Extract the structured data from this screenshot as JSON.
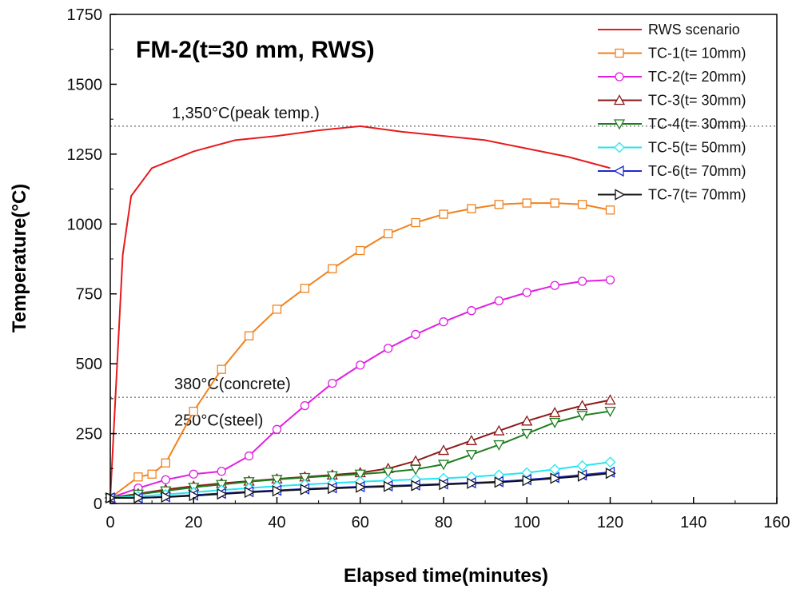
{
  "chart_data": {
    "type": "line",
    "title": "FM-2(t=30 mm, RWS)",
    "xlabel": "Elapsed time(minutes)",
    "ylabel": "Temperature(°C)",
    "xlim": [
      0,
      160
    ],
    "ylim": [
      0,
      1750
    ],
    "xticks": [
      0,
      20,
      40,
      60,
      80,
      100,
      120,
      140,
      160
    ],
    "yticks": [
      0,
      250,
      500,
      750,
      1000,
      1250,
      1500,
      1750
    ],
    "grid": false,
    "legend_position": "top-right",
    "reference_lines": [
      {
        "y": 1350,
        "label": "1,350°C(peak temp.)"
      },
      {
        "y": 380,
        "label": "380°C(concrete)"
      },
      {
        "y": 250,
        "label": "250°C(steel)"
      }
    ],
    "series": [
      {
        "name": "RWS scenario",
        "color": "#e8191c",
        "marker": "none",
        "x": [
          0,
          3,
          5,
          10,
          20,
          30,
          40,
          50,
          60,
          70,
          80,
          90,
          100,
          110,
          120
        ],
        "y": [
          20,
          890,
          1100,
          1200,
          1260,
          1300,
          1315,
          1335,
          1350,
          1330,
          1315,
          1300,
          1270,
          1240,
          1200
        ]
      },
      {
        "name": "TC-1(t= 10mm)",
        "color": "#f0821e",
        "marker": "square",
        "x": [
          0,
          6.7,
          10,
          13.3,
          20,
          26.7,
          33.3,
          40,
          46.7,
          53.3,
          60,
          66.7,
          73.3,
          80,
          86.7,
          93.3,
          100,
          106.7,
          113.3,
          120
        ],
        "y": [
          20,
          95,
          105,
          145,
          330,
          480,
          600,
          695,
          770,
          840,
          905,
          965,
          1005,
          1035,
          1055,
          1070,
          1075,
          1075,
          1070,
          1050
        ]
      },
      {
        "name": "TC-2(t= 20mm)",
        "color": "#e020e0",
        "marker": "circle",
        "x": [
          0,
          6.7,
          13.3,
          20,
          26.7,
          33.3,
          40,
          46.7,
          53.3,
          60,
          66.7,
          73.3,
          80,
          86.7,
          93.3,
          100,
          106.7,
          113.3,
          120
        ],
        "y": [
          20,
          55,
          85,
          105,
          115,
          170,
          265,
          350,
          430,
          495,
          555,
          605,
          650,
          690,
          725,
          755,
          780,
          795,
          800
        ]
      },
      {
        "name": "TC-3(t= 30mm)",
        "color": "#8b1a1a",
        "marker": "triangle-up",
        "x": [
          0,
          6.7,
          13.3,
          20,
          26.7,
          33.3,
          40,
          46.7,
          53.3,
          60,
          66.7,
          73.3,
          80,
          86.7,
          93.3,
          100,
          106.7,
          113.3,
          120
        ],
        "y": [
          20,
          35,
          50,
          62,
          72,
          80,
          88,
          95,
          102,
          110,
          125,
          152,
          190,
          225,
          260,
          295,
          325,
          350,
          370
        ]
      },
      {
        "name": "TC-4(t= 30mm)",
        "color": "#1e7d1e",
        "marker": "triangle-down",
        "x": [
          0,
          6.7,
          13.3,
          20,
          26.7,
          33.3,
          40,
          46.7,
          53.3,
          60,
          66.7,
          73.3,
          80,
          86.7,
          93.3,
          100,
          106.7,
          113.3,
          120
        ],
        "y": [
          20,
          33,
          45,
          58,
          68,
          78,
          86,
          93,
          99,
          105,
          112,
          122,
          140,
          175,
          210,
          250,
          290,
          315,
          330
        ]
      },
      {
        "name": "TC-5(t= 50mm)",
        "color": "#22e6f0",
        "marker": "diamond",
        "x": [
          0,
          6.7,
          13.3,
          20,
          26.7,
          33.3,
          40,
          46.7,
          53.3,
          60,
          66.7,
          73.3,
          80,
          86.7,
          93.3,
          100,
          106.7,
          113.3,
          120
        ],
        "y": [
          20,
          25,
          32,
          40,
          48,
          55,
          62,
          68,
          73,
          78,
          82,
          86,
          90,
          95,
          102,
          110,
          122,
          135,
          148
        ]
      },
      {
        "name": "TC-6(t= 70mm)",
        "color": "#1a2ad0",
        "marker": "triangle-left",
        "x": [
          0,
          6.7,
          13.3,
          20,
          26.7,
          33.3,
          40,
          46.7,
          53.3,
          60,
          66.7,
          73.3,
          80,
          86.7,
          93.3,
          100,
          106.7,
          113.3,
          120
        ],
        "y": [
          20,
          20,
          24,
          30,
          36,
          42,
          47,
          52,
          56,
          60,
          63,
          66,
          70,
          74,
          78,
          85,
          93,
          102,
          112
        ]
      },
      {
        "name": "TC-7(t= 70mm)",
        "color": "#111111",
        "marker": "triangle-right",
        "x": [
          0,
          6.7,
          13.3,
          20,
          26.7,
          33.3,
          40,
          46.7,
          53.3,
          60,
          66.7,
          73.3,
          80,
          86.7,
          93.3,
          100,
          106.7,
          113.3,
          120
        ],
        "y": [
          20,
          20,
          23,
          28,
          34,
          40,
          45,
          50,
          54,
          58,
          61,
          64,
          68,
          72,
          76,
          82,
          90,
          98,
          108
        ]
      }
    ]
  }
}
